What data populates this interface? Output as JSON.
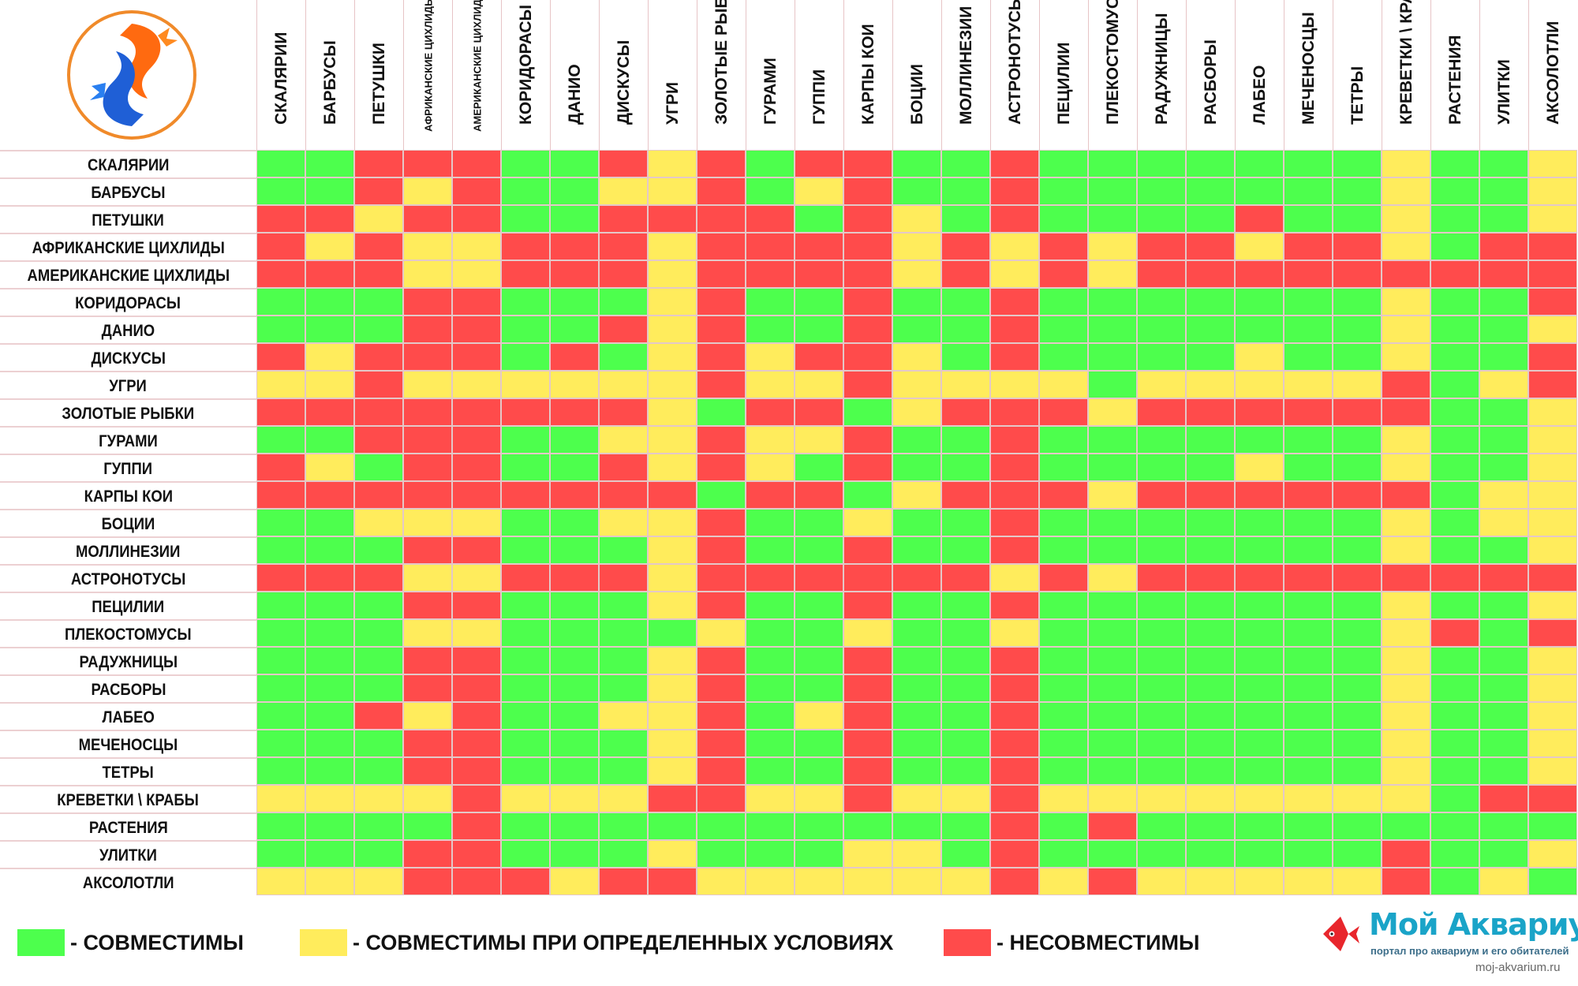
{
  "chart_data": {
    "type": "heatmap",
    "title": "",
    "columns": [
      "СКАЛЯРИИ",
      "БАРБУСЫ",
      "ПЕТУШКИ",
      "АФРИКАНСКИЕ ЦИХЛИДЫ",
      "АМЕРИКАНСКИЕ ЦИХЛИДЫ",
      "КОРИДОРАСЫ",
      "ДАНИО",
      "ДИСКУСЫ",
      "УГРИ",
      "ЗОЛОТЫЕ РЫБКИ",
      "ГУРАМИ",
      "ГУППИ",
      "КАРПЫ КОИ",
      "БОЦИИ",
      "МОЛЛИНЕЗИИ",
      "АСТРОНОТУСЫ",
      "ПЕЦИЛИИ",
      "ПЛЕКОСТОМУСЫ",
      "РАДУЖНИЦЫ",
      "РАСБОРЫ",
      "ЛАБЕО",
      "МЕЧЕНОСЦЫ",
      "ТЕТРЫ",
      "КРЕВЕТКИ \\ КРАБЫ",
      "РАСТЕНИЯ",
      "УЛИТКИ",
      "АКСОЛОТЛИ"
    ],
    "rows": [
      "СКАЛЯРИИ",
      "БАРБУСЫ",
      "ПЕТУШКИ",
      "АФРИКАНСКИЕ ЦИХЛИДЫ",
      "АМЕРИКАНСКИЕ ЦИХЛИДЫ",
      "КОРИДОРАСЫ",
      "ДАНИО",
      "ДИСКУСЫ",
      "УГРИ",
      "ЗОЛОТЫЕ РЫБКИ",
      "ГУРАМИ",
      "ГУППИ",
      "КАРПЫ КОИ",
      "БОЦИИ",
      "МОЛЛИНЕЗИИ",
      "АСТРОНОТУСЫ",
      "ПЕЦИЛИИ",
      "ПЛЕКОСТОМУСЫ",
      "РАДУЖНИЦЫ",
      "РАСБОРЫ",
      "ЛАБЕО",
      "МЕЧЕНОСЦЫ",
      "ТЕТРЫ",
      "КРЕВЕТКИ \\ КРАБЫ",
      "РАСТЕНИЯ",
      "УЛИТКИ",
      "АКСОЛОТЛИ"
    ],
    "values": [
      "GGRRRGGRYRGRRGGRGGGGGGGYGGY",
      "GGRYRGGYYRGYRGGRGGGGGGGYGGY",
      "RRYRRGGRRRRGRYGRGGGGRGGYGGY",
      "RYRYYRRRYRRRRYRYRYRRYRRYGRR",
      "RRRYYRRRYRRRRYRYRYRRRRRRRRR",
      "GGGRRGGGYRGGRGGRGGGGGGGYGGR",
      "GGGRRGGRYRGGRGGRGGGGGGGYGGY",
      "RYRRRGRGYRYRRYGRGGGGYGGYGGR",
      "YYRYYYYYYRYYRYYYYGYYYYYRGYR",
      "RRRRRRRRYGRRGYRRRYRRRRRRGGY",
      "GGRRRGGYYRYYRGGRGGGGGGGYGGY",
      "RYGRRGGRYRYGRGGRGGGGYGGYGGY",
      "RRRRRRRRRGRRGYRRRYRRRRRRGYY",
      "GGYYYGGYYRGGYGGRGGGGGGGYGYY",
      "GGGRRGGGYRGGRGGRGGGGGGGYGGY",
      "RRRYYRRRYRRRRRRYRYRRRRRRRRR",
      "GGGRRGGGYRGGRGGRGGGGGGGYGGY",
      "GGGYYGGGGYGGYGGYGGGGGGGYRGR",
      "GGGRRGGGYRGGRGGRGGGGGGGYGGY",
      "GGGRRGGGYRGGRGGRGGGGGGGYGGY",
      "GGRYRGGYYRGYRGGRGGGGGGGYGGY",
      "GGGRRGGGYRGGRGGRGGGGGGGYGGY",
      "GGGRRGGGYRGGRGGRGGGGGGGYGGY",
      "YYYYRYYYRRYYRYYRYYYYYYYYGRR",
      "GGGGRGGGGGGGGGGRGRGGGGGGGGG",
      "GGGRRGGGYGGGYYGRGGGGGGGRGGY",
      "YYYRRRYRRYYYYYYRYRYYYYYRGYG"
    ],
    "legend": [
      {
        "code": "G",
        "label": "- СОВМЕСТИМЫ",
        "color": "#4dff4d"
      },
      {
        "code": "Y",
        "label": "- СОВМЕСТИМЫ ПРИ ОПРЕДЕЛЕННЫХ УСЛОВИЯХ",
        "color": "#ffec5c"
      },
      {
        "code": "R",
        "label": "- НЕСОВМЕСТИМЫ",
        "color": "#ff4b4b"
      }
    ],
    "legend_position": "bottom-left"
  },
  "brand": {
    "title": "Мой Аквариум",
    "subtitle": "портал про аквариум и его обитателей",
    "url": "moj-akvarium.ru",
    "title_color": "#1aa4c8",
    "fish_color": "#e8262c"
  }
}
